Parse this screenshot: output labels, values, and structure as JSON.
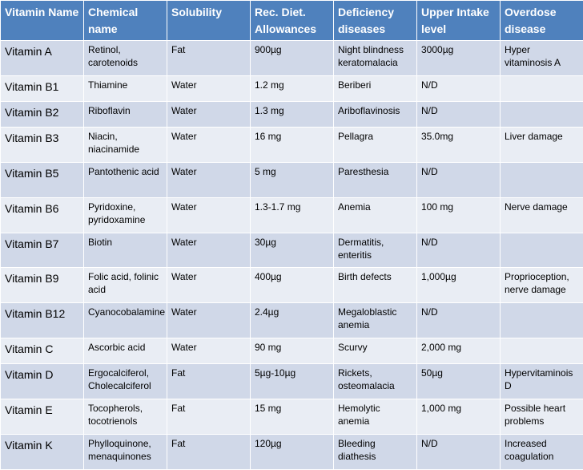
{
  "columns": [
    "Vitamin Name",
    "Chemical name",
    "Solubility",
    "Rec. Diet. Allowances",
    "Deficiency diseases",
    "Upper Intake level",
    "Overdose disease"
  ],
  "rows": [
    [
      "Vitamin A",
      "Retinol, carotenoids",
      "Fat",
      "900µg",
      "Night blindness keratomalacia",
      "3000µg",
      "Hyper vitaminosis  A"
    ],
    [
      "Vitamin B1",
      "Thiamine",
      "Water",
      "1.2 mg",
      "Beriberi",
      "N/D",
      ""
    ],
    [
      "Vitamin B2",
      "Riboflavin",
      "Water",
      "1.3 mg",
      "Ariboflavinosis",
      "N/D",
      ""
    ],
    [
      "Vitamin B3",
      "Niacin, niacinamide",
      "Water",
      "16 mg",
      "Pellagra",
      "35.0mg",
      "Liver damage"
    ],
    [
      "Vitamin B5",
      "Pantothenic acid",
      "Water",
      "5 mg",
      "Paresthesia",
      "N/D",
      ""
    ],
    [
      "Vitamin B6",
      "Pyridoxine, pyridoxamine",
      "Water",
      "1.3-1.7 mg",
      "Anemia",
      "100 mg",
      "Nerve damage"
    ],
    [
      "Vitamin B7",
      "Biotin",
      "Water",
      "30µg",
      "Dermatitis, enteritis",
      "N/D",
      ""
    ],
    [
      "Vitamin B9",
      "Folic acid, folinic acid",
      "Water",
      "400µg",
      "Birth defects",
      "1,000µg",
      "Proprioception, nerve damage"
    ],
    [
      "Vitamin B12",
      "Cyanocobalamine",
      "Water",
      "2.4µg",
      "Megaloblastic anemia",
      "N/D",
      ""
    ],
    [
      "Vitamin C",
      "Ascorbic acid",
      "Water",
      "90 mg",
      "Scurvy",
      "2,000 mg",
      ""
    ],
    [
      "Vitamin D",
      "Ergocalciferol, Cholecalciferol",
      "Fat",
      "5µg-10µg",
      "Rickets, osteomalacia",
      "50µg",
      "Hypervitaminois D"
    ],
    [
      "Vitamin E",
      "Tocopherols, tocotrienols",
      "Fat",
      "15 mg",
      "Hemolytic anemia",
      "1,000 mg",
      "Possible heart problems"
    ],
    [
      "Vitamin K",
      "Phylloquinone, menaquinones",
      "Fat",
      "120µg",
      "Bleeding diathesis",
      "N/D",
      "Increased coagulation"
    ]
  ]
}
